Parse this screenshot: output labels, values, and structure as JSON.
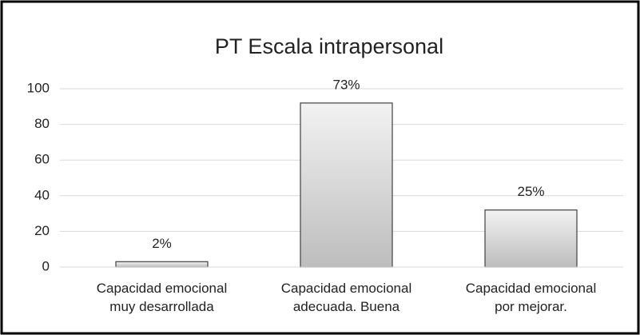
{
  "chart_data": {
    "type": "bar",
    "title": "PT Escala intrapersonal",
    "categories": [
      "Capacidad emocional muy desarrollada",
      "Capacidad emocional adecuada. Buena",
      "Capacidad emocional por mejorar."
    ],
    "values": [
      3,
      92,
      32
    ],
    "percent_labels": [
      "2%",
      "73%",
      "25%"
    ],
    "color": "#d0d0d0",
    "ylim": [
      0,
      100
    ],
    "yticks": [
      0,
      20,
      40,
      60,
      80,
      100
    ],
    "grid": true
  }
}
